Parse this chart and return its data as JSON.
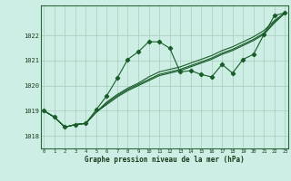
{
  "xlabel": "Graphe pression niveau de la mer (hPa)",
  "background_color": "#cceee4",
  "grid_color": "#aaccbb",
  "line_color": "#1a5c2a",
  "x_ticks": [
    0,
    1,
    2,
    3,
    4,
    5,
    6,
    7,
    8,
    9,
    10,
    11,
    12,
    13,
    14,
    15,
    16,
    17,
    18,
    19,
    20,
    21,
    22,
    23
  ],
  "ylim": [
    1017.5,
    1023.2
  ],
  "y_ticks": [
    1018,
    1019,
    1020,
    1021,
    1022
  ],
  "series": [
    [
      1019.0,
      1018.75,
      1018.35,
      1018.45,
      1018.5,
      1019.05,
      1019.6,
      1020.3,
      1021.05,
      1021.35,
      1021.75,
      1021.75,
      1021.5,
      1020.55,
      1020.6,
      1020.45,
      1020.35,
      1020.85,
      1020.5,
      1021.05,
      1021.25,
      1022.05,
      1022.8,
      1022.9
    ],
    [
      1019.0,
      1018.75,
      1018.35,
      1018.45,
      1018.5,
      1018.95,
      1019.35,
      1019.65,
      1019.9,
      1020.1,
      1020.35,
      1020.55,
      1020.65,
      1020.75,
      1020.9,
      1021.05,
      1021.2,
      1021.4,
      1021.55,
      1021.75,
      1021.95,
      1022.2,
      1022.6,
      1022.9
    ],
    [
      1019.0,
      1018.75,
      1018.35,
      1018.45,
      1018.5,
      1018.95,
      1019.3,
      1019.6,
      1019.85,
      1020.05,
      1020.25,
      1020.45,
      1020.55,
      1020.65,
      1020.8,
      1020.95,
      1021.1,
      1021.3,
      1021.45,
      1021.65,
      1021.85,
      1022.1,
      1022.55,
      1022.9
    ],
    [
      1019.0,
      1018.75,
      1018.35,
      1018.45,
      1018.5,
      1018.95,
      1019.25,
      1019.55,
      1019.8,
      1020.0,
      1020.2,
      1020.4,
      1020.5,
      1020.6,
      1020.75,
      1020.9,
      1021.05,
      1021.25,
      1021.4,
      1021.6,
      1021.8,
      1022.05,
      1022.5,
      1022.9
    ]
  ]
}
